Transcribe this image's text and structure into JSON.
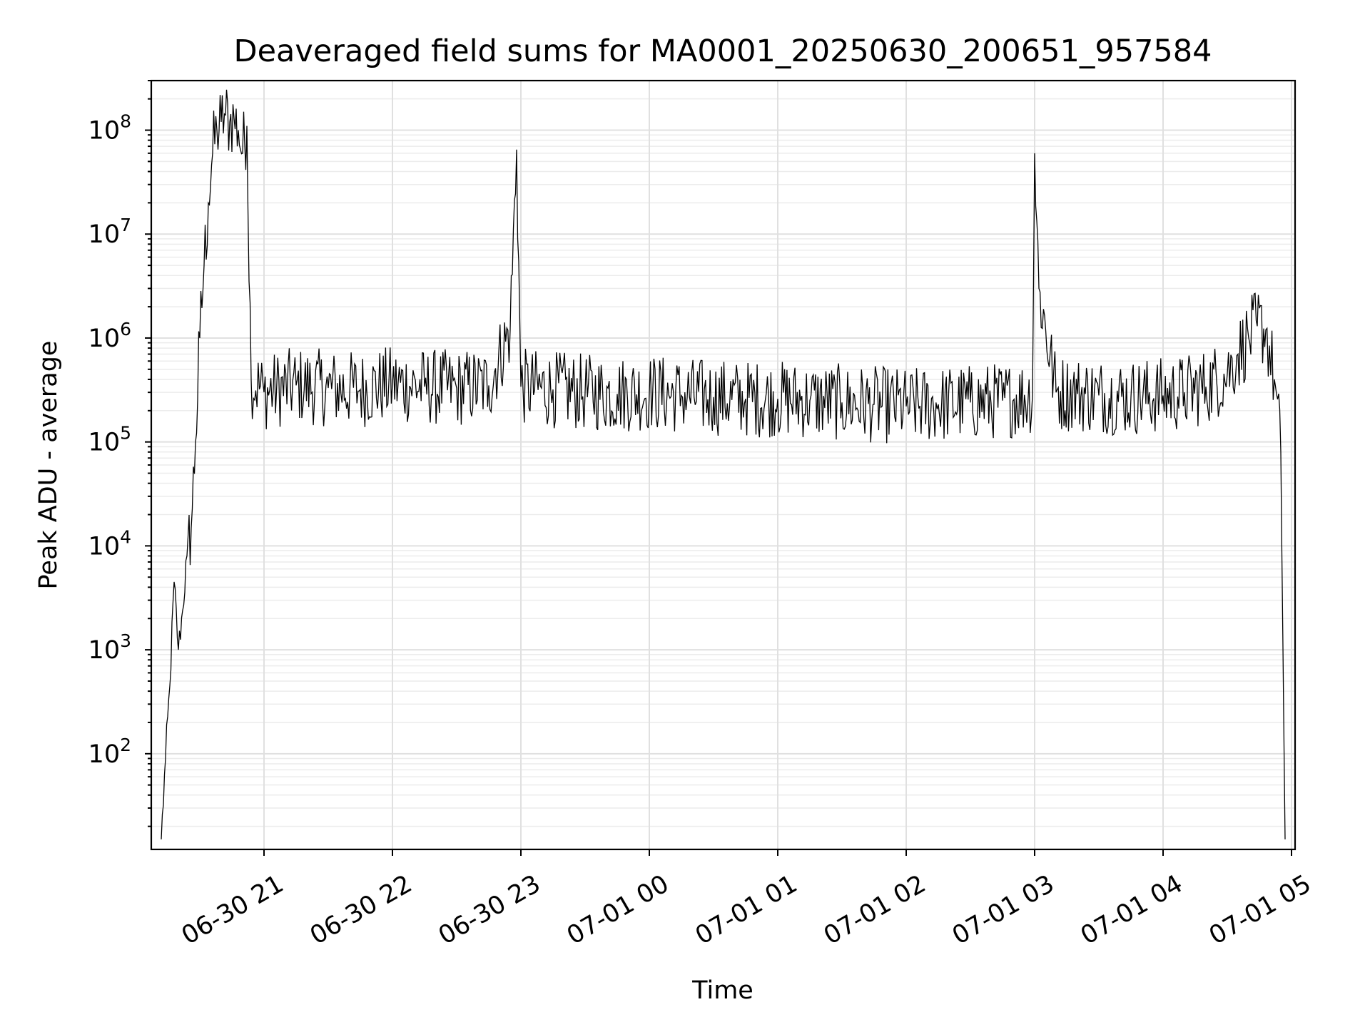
{
  "chart_data": {
    "type": "line",
    "title": "Deaveraged field sums for MA0001_20250630_200651_957584",
    "xlabel": "Time",
    "ylabel": "Peak ADU - average",
    "yscale": "log",
    "grid": "on",
    "legend": "none",
    "series_color": "#000000",
    "ylim": [
      12,
      300000000.0
    ],
    "xlim": [
      "06-30 20:07",
      "07-01 05:01"
    ],
    "x_ticks": [
      {
        "t": "2025-06-30T21:00",
        "label": "06-30 21"
      },
      {
        "t": "2025-06-30T22:00",
        "label": "06-30 22"
      },
      {
        "t": "2025-06-30T23:00",
        "label": "06-30 23"
      },
      {
        "t": "2025-07-01T00:00",
        "label": "07-01 00"
      },
      {
        "t": "2025-07-01T01:00",
        "label": "07-01 01"
      },
      {
        "t": "2025-07-01T02:00",
        "label": "07-01 02"
      },
      {
        "t": "2025-07-01T03:00",
        "label": "07-01 03"
      },
      {
        "t": "2025-07-01T04:00",
        "label": "07-01 04"
      },
      {
        "t": "2025-07-01T05:00",
        "label": "07-01 05"
      }
    ],
    "y_ticks": [
      {
        "value": 100,
        "base": "10",
        "exp": "2"
      },
      {
        "value": 1000,
        "base": "10",
        "exp": "3"
      },
      {
        "value": 10000,
        "base": "10",
        "exp": "4"
      },
      {
        "value": 100000,
        "base": "10",
        "exp": "5"
      },
      {
        "value": 1000000,
        "base": "10",
        "exp": "6"
      },
      {
        "value": 10000000,
        "base": "10",
        "exp": "7"
      },
      {
        "value": 100000000,
        "base": "10",
        "exp": "8"
      }
    ],
    "series": [
      {
        "x": [
          "06-30 20:12",
          "06-30 20:14",
          "06-30 20:16",
          "06-30 20:18",
          "06-30 20:20",
          "06-30 20:22",
          "06-30 20:24",
          "06-30 20:26",
          "06-30 20:28",
          "06-30 20:30",
          "06-30 20:32",
          "06-30 20:34",
          "06-30 20:36",
          "06-30 20:38",
          "06-30 20:40",
          "06-30 20:42",
          "06-30 20:44",
          "06-30 20:46",
          "06-30 20:48",
          "06-30 20:50",
          "06-30 20:52",
          "06-30 20:54",
          "06-30 21:00",
          "06-30 21:15",
          "06-30 21:30",
          "06-30 21:45",
          "06-30 22:00",
          "06-30 22:15",
          "06-30 22:30",
          "06-30 22:45",
          "06-30 22:55",
          "06-30 22:58",
          "06-30 23:00",
          "06-30 23:15",
          "06-30 23:30",
          "06-30 23:45",
          "07-01 00:00",
          "07-01 00:15",
          "07-01 00:30",
          "07-01 00:45",
          "07-01 01:00",
          "07-01 01:15",
          "07-01 01:30",
          "07-01 01:45",
          "07-01 02:00",
          "07-01 02:15",
          "07-01 02:30",
          "07-01 02:45",
          "07-01 02:59",
          "07-01 03:00",
          "07-01 03:02",
          "07-01 03:10",
          "07-01 03:20",
          "07-01 03:30",
          "07-01 03:45",
          "07-01 04:00",
          "07-01 04:10",
          "07-01 04:20",
          "07-01 04:30",
          "07-01 04:35",
          "07-01 04:40",
          "07-01 04:44",
          "07-01 04:48",
          "07-01 04:52",
          "07-01 04:55",
          "07-01 04:57"
        ],
        "y": [
          15,
          90,
          450,
          4500,
          1000,
          2400,
          8000,
          15000,
          100000,
          1000000,
          5000000,
          20000000,
          60000000,
          100000000,
          120000000,
          140000000,
          120000000,
          130000000,
          100000000,
          60000000,
          110000000,
          400000,
          300000,
          350000,
          330000,
          320000,
          360000,
          340000,
          330000,
          350000,
          1200000,
          65000000,
          340000,
          320000,
          300000,
          290000,
          300000,
          280000,
          270000,
          260000,
          260000,
          250000,
          240000,
          230000,
          220000,
          230000,
          240000,
          250000,
          280000,
          60000000,
          3000000,
          300000,
          290000,
          280000,
          270000,
          280000,
          300000,
          340000,
          450000,
          700000,
          1000000,
          1300000,
          1200000,
          400000,
          80000,
          15
        ]
      }
    ]
  }
}
